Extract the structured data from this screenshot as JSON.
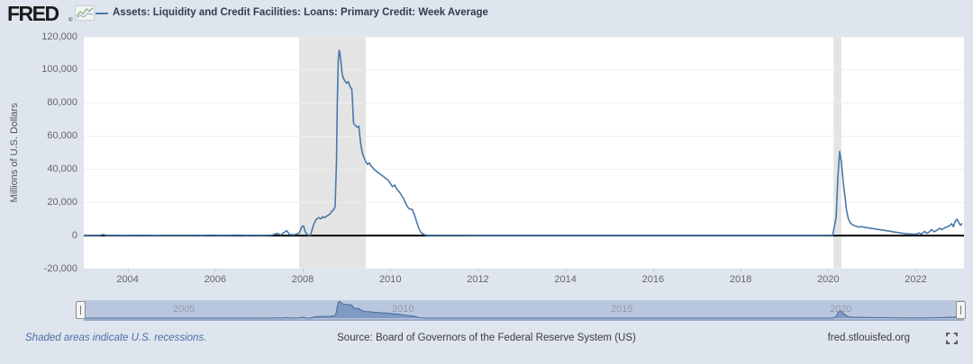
{
  "header": {
    "logo": "FRED",
    "logo_reg": "®",
    "series_title": "Assets: Liquidity and Credit Facilities: Loans: Primary Credit: Week Average"
  },
  "chart": {
    "ylabel": "Millions of U.S. Dollars"
  },
  "footer": {
    "recession_note": "Shaded areas indicate U.S. recessions.",
    "source": "Source: Board of Governors of the Federal Reserve System (US)",
    "site": "fred.stlouisfed.org"
  },
  "icons": {
    "logo_chart": "line-chart-icon",
    "fullscreen": "fullscreen-expand-icon"
  },
  "colors": {
    "background": "#dee5ee",
    "plot_background": "#ffffff",
    "line": "#4878ab",
    "grid": "#efefef",
    "zero_line": "#000000",
    "recession": "#e4e4e4",
    "slider_track": "#b9c7de",
    "slider_fill": "#7492bf",
    "slider_line": "#45699c",
    "accent_link": "#4a6fa5"
  },
  "chart_data": {
    "type": "line",
    "title": "Assets: Liquidity and Credit Facilities: Loans: Primary Credit: Week Average",
    "xlabel": "",
    "ylabel": "Millions of U.S. Dollars",
    "xlim": [
      2003.0,
      2023.1
    ],
    "ylim": [
      -20000,
      120000
    ],
    "yticks": [
      -20000,
      0,
      20000,
      40000,
      60000,
      80000,
      100000,
      120000
    ],
    "xticks": [
      2004,
      2006,
      2008,
      2010,
      2012,
      2014,
      2016,
      2018,
      2020,
      2022
    ],
    "slider_xticks": [
      2005,
      2010,
      2015,
      2020
    ],
    "grid": "horizontal",
    "legend_position": "top",
    "recessions": [
      [
        2007.92,
        2009.44
      ],
      [
        2020.12,
        2020.3
      ]
    ],
    "points": [
      [
        2003.0,
        30
      ],
      [
        2003.2,
        80
      ],
      [
        2003.35,
        120
      ],
      [
        2003.45,
        700
      ],
      [
        2003.5,
        150
      ],
      [
        2003.7,
        100
      ],
      [
        2003.9,
        200
      ],
      [
        2004.1,
        100
      ],
      [
        2004.3,
        250
      ],
      [
        2004.5,
        120
      ],
      [
        2004.7,
        180
      ],
      [
        2004.9,
        100
      ],
      [
        2005.1,
        150
      ],
      [
        2005.3,
        100
      ],
      [
        2005.5,
        250
      ],
      [
        2005.7,
        150
      ],
      [
        2005.9,
        300
      ],
      [
        2006.1,
        150
      ],
      [
        2006.3,
        200
      ],
      [
        2006.5,
        300
      ],
      [
        2006.7,
        200
      ],
      [
        2006.9,
        250
      ],
      [
        2007.1,
        200
      ],
      [
        2007.3,
        350
      ],
      [
        2007.42,
        1300
      ],
      [
        2007.5,
        400
      ],
      [
        2007.63,
        3000
      ],
      [
        2007.7,
        700
      ],
      [
        2007.8,
        500
      ],
      [
        2007.92,
        1500
      ],
      [
        2007.98,
        5500
      ],
      [
        2008.02,
        5800
      ],
      [
        2008.06,
        2000
      ],
      [
        2008.12,
        400
      ],
      [
        2008.18,
        300
      ],
      [
        2008.24,
        6000
      ],
      [
        2008.3,
        9500
      ],
      [
        2008.36,
        10800
      ],
      [
        2008.42,
        10200
      ],
      [
        2008.46,
        11500
      ],
      [
        2008.5,
        10800
      ],
      [
        2008.56,
        12000
      ],
      [
        2008.62,
        13000
      ],
      [
        2008.66,
        14500
      ],
      [
        2008.7,
        15500
      ],
      [
        2008.74,
        17500
      ],
      [
        2008.77,
        45000
      ],
      [
        2008.79,
        80000
      ],
      [
        2008.81,
        105000
      ],
      [
        2008.83,
        111900
      ],
      [
        2008.85,
        110000
      ],
      [
        2008.88,
        103000
      ],
      [
        2008.9,
        97500
      ],
      [
        2008.93,
        95000
      ],
      [
        2008.96,
        93500
      ],
      [
        2009.0,
        92000
      ],
      [
        2009.04,
        93000
      ],
      [
        2009.08,
        90000
      ],
      [
        2009.12,
        88500
      ],
      [
        2009.14,
        80000
      ],
      [
        2009.16,
        68000
      ],
      [
        2009.2,
        66500
      ],
      [
        2009.24,
        65500
      ],
      [
        2009.28,
        66000
      ],
      [
        2009.32,
        56000
      ],
      [
        2009.36,
        50000
      ],
      [
        2009.4,
        47000
      ],
      [
        2009.44,
        44500
      ],
      [
        2009.48,
        43000
      ],
      [
        2009.52,
        44000
      ],
      [
        2009.56,
        42000
      ],
      [
        2009.6,
        41000
      ],
      [
        2009.65,
        39500
      ],
      [
        2009.7,
        38500
      ],
      [
        2009.75,
        37500
      ],
      [
        2009.8,
        36500
      ],
      [
        2009.85,
        35500
      ],
      [
        2009.9,
        34500
      ],
      [
        2009.95,
        33500
      ],
      [
        2010.0,
        31500
      ],
      [
        2010.05,
        29500
      ],
      [
        2010.1,
        30500
      ],
      [
        2010.15,
        28000
      ],
      [
        2010.2,
        26500
      ],
      [
        2010.25,
        24500
      ],
      [
        2010.3,
        22500
      ],
      [
        2010.35,
        19500
      ],
      [
        2010.4,
        17000
      ],
      [
        2010.45,
        16000
      ],
      [
        2010.5,
        15800
      ],
      [
        2010.55,
        12500
      ],
      [
        2010.6,
        8500
      ],
      [
        2010.65,
        4500
      ],
      [
        2010.7,
        1800
      ],
      [
        2010.78,
        500
      ],
      [
        2010.85,
        200
      ],
      [
        2011.0,
        80
      ],
      [
        2011.5,
        60
      ],
      [
        2012.0,
        40
      ],
      [
        2013.0,
        30
      ],
      [
        2014.0,
        25
      ],
      [
        2015.0,
        30
      ],
      [
        2016.0,
        40
      ],
      [
        2017.0,
        50
      ],
      [
        2018.0,
        40
      ],
      [
        2019.0,
        35
      ],
      [
        2019.8,
        50
      ],
      [
        2020.1,
        60
      ],
      [
        2020.18,
        11000
      ],
      [
        2020.22,
        35000
      ],
      [
        2020.26,
        50800
      ],
      [
        2020.3,
        44500
      ],
      [
        2020.34,
        33000
      ],
      [
        2020.38,
        24000
      ],
      [
        2020.42,
        15000
      ],
      [
        2020.46,
        10000
      ],
      [
        2020.5,
        7800
      ],
      [
        2020.56,
        6500
      ],
      [
        2020.62,
        5800
      ],
      [
        2020.7,
        5200
      ],
      [
        2020.78,
        5400
      ],
      [
        2020.85,
        4900
      ],
      [
        2020.93,
        4600
      ],
      [
        2021.0,
        4300
      ],
      [
        2021.1,
        3900
      ],
      [
        2021.2,
        3500
      ],
      [
        2021.3,
        3100
      ],
      [
        2021.4,
        2700
      ],
      [
        2021.5,
        2200
      ],
      [
        2021.6,
        1800
      ],
      [
        2021.7,
        1400
      ],
      [
        2021.8,
        1100
      ],
      [
        2021.9,
        950
      ],
      [
        2022.0,
        850
      ],
      [
        2022.08,
        1600
      ],
      [
        2022.13,
        900
      ],
      [
        2022.2,
        2600
      ],
      [
        2022.25,
        1300
      ],
      [
        2022.3,
        2100
      ],
      [
        2022.36,
        3600
      ],
      [
        2022.42,
        2300
      ],
      [
        2022.48,
        3200
      ],
      [
        2022.54,
        4400
      ],
      [
        2022.6,
        3600
      ],
      [
        2022.66,
        4700
      ],
      [
        2022.72,
        5300
      ],
      [
        2022.78,
        6200
      ],
      [
        2022.82,
        7200
      ],
      [
        2022.86,
        5400
      ],
      [
        2022.9,
        8600
      ],
      [
        2022.94,
        9900
      ],
      [
        2022.98,
        7800
      ],
      [
        2023.02,
        6200
      ],
      [
        2023.06,
        7400
      ]
    ]
  }
}
